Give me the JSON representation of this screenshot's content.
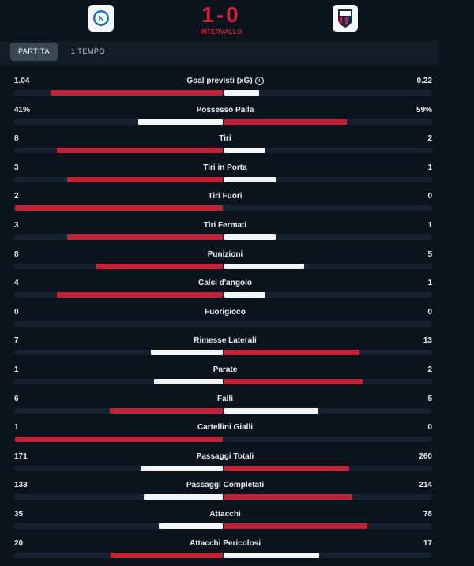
{
  "match": {
    "score": "1-0",
    "status": "INTERVALLO",
    "home_crest": "napoli-crest",
    "away_crest": "bologna-crest"
  },
  "tabs": [
    {
      "label": "PARTITA",
      "active": true
    },
    {
      "label": "1 TEMPO",
      "active": false
    }
  ],
  "colors": {
    "accent": "#c22238",
    "away_bar": "#f2f4f6",
    "background": "#0b131c",
    "track": "#16222f"
  },
  "stats": [
    {
      "label": "Goal previsti (xG)",
      "home": "1.04",
      "away": "0.22",
      "home_share": 0.83,
      "away_share": 0.17,
      "info": true
    },
    {
      "label": "Possesso Palla",
      "home": "41%",
      "away": "59%",
      "home_share": 0.41,
      "away_share": 0.59
    },
    {
      "label": "Tiri",
      "home": "8",
      "away": "2",
      "home_share": 0.8,
      "away_share": 0.2
    },
    {
      "label": "Tiri in Porta",
      "home": "3",
      "away": "1",
      "home_share": 0.75,
      "away_share": 0.25
    },
    {
      "label": "Tiri Fuori",
      "home": "2",
      "away": "0",
      "home_share": 1.0,
      "away_share": 0.0
    },
    {
      "label": "Tiri Fermati",
      "home": "3",
      "away": "1",
      "home_share": 0.75,
      "away_share": 0.25
    },
    {
      "label": "Punizioni",
      "home": "8",
      "away": "5",
      "home_share": 0.615,
      "away_share": 0.385
    },
    {
      "label": "Calci d'angolo",
      "home": "4",
      "away": "1",
      "home_share": 0.8,
      "away_share": 0.2
    },
    {
      "label": "Fuorigioco",
      "home": "0",
      "away": "0",
      "home_share": 0.0,
      "away_share": 0.0
    },
    {
      "label": "Rimesse Laterali",
      "home": "7",
      "away": "13",
      "home_share": 0.35,
      "away_share": 0.65
    },
    {
      "label": "Parate",
      "home": "1",
      "away": "2",
      "home_share": 0.333,
      "away_share": 0.667
    },
    {
      "label": "Falli",
      "home": "6",
      "away": "5",
      "home_share": 0.545,
      "away_share": 0.455
    },
    {
      "label": "Cartellini Gialli",
      "home": "1",
      "away": "0",
      "home_share": 1.0,
      "away_share": 0.0
    },
    {
      "label": "Passaggi Totali",
      "home": "171",
      "away": "260",
      "home_share": 0.397,
      "away_share": 0.603
    },
    {
      "label": "Passaggi Completati",
      "home": "133",
      "away": "214",
      "home_share": 0.383,
      "away_share": 0.617
    },
    {
      "label": "Attacchi",
      "home": "35",
      "away": "78",
      "home_share": 0.31,
      "away_share": 0.69
    },
    {
      "label": "Attacchi Pericolosi",
      "home": "20",
      "away": "17",
      "home_share": 0.54,
      "away_share": 0.46
    }
  ]
}
